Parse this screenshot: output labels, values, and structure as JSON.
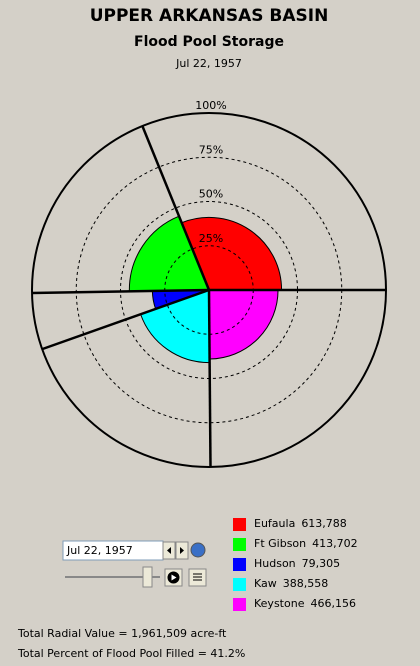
{
  "chart_data": {
    "type": "polar-area",
    "title": "UPPER ARKANSAS BASIN",
    "subtitle": "Flood Pool Storage",
    "date": "Jul 22, 1957",
    "categories": [
      "Eufaula",
      "Ft Gibson",
      "Hudson",
      "Kaw",
      "Keystone"
    ],
    "values": [
      613788,
      413702,
      79305,
      388558,
      466156
    ],
    "value_labels": [
      "613,788",
      "413,702",
      "79,305",
      "388,558",
      "466,156"
    ],
    "percent_filled": [
      41,
      45,
      32,
      41,
      39
    ],
    "colors": [
      "#ff0000",
      "#00ff00",
      "#0000ff",
      "#00ffff",
      "#ff00ff"
    ],
    "rlim": [
      0,
      100
    ],
    "rticks": [
      {
        "value": 25,
        "label": "25%"
      },
      {
        "value": 50,
        "label": "50%"
      },
      {
        "value": 75,
        "label": "75%"
      },
      {
        "value": 100,
        "label": "100%"
      }
    ]
  },
  "controls": {
    "date_field": "Jul 22, 1957"
  },
  "summary": {
    "total_radial": "Total Radial Value =  1,961,509 acre-ft",
    "total_percent": "Total Percent of Flood Pool Filled =  41.2%"
  }
}
